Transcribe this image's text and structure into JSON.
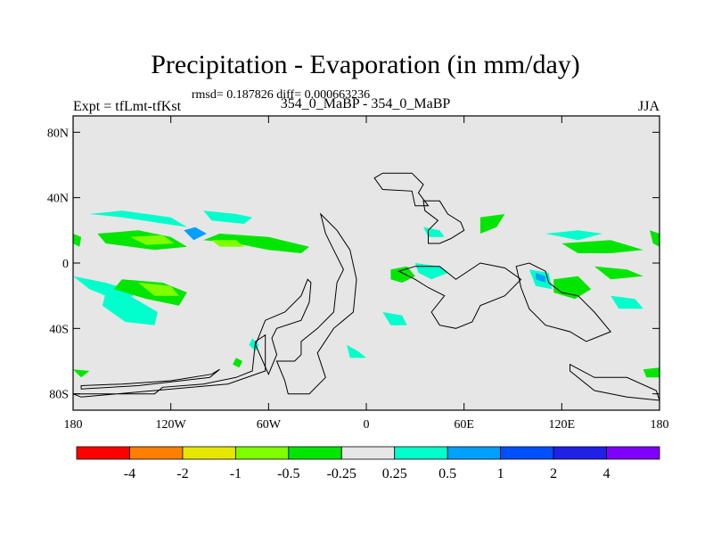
{
  "chart_data": {
    "type": "heatmap",
    "title": "Precipitation - Evaporation (in mm/day)",
    "stats": "rmsd= 0.187826 diff= 0.000663236",
    "left_label": "Expt = tfLmt-tfKst",
    "center_label": "354_0_MaBP - 354_0_MaBP",
    "right_label": "JJA",
    "x_range": [
      -180,
      180
    ],
    "y_range": [
      -90,
      90
    ],
    "x_ticks": [
      {
        "value": -180,
        "label": "180"
      },
      {
        "value": -120,
        "label": "120W"
      },
      {
        "value": -60,
        "label": "60W"
      },
      {
        "value": 0,
        "label": "0"
      },
      {
        "value": 60,
        "label": "60E"
      },
      {
        "value": 120,
        "label": "120E"
      },
      {
        "value": 180,
        "label": "180"
      }
    ],
    "y_ticks": [
      {
        "value": 80,
        "label": "80N"
      },
      {
        "value": 40,
        "label": "40N"
      },
      {
        "value": 0,
        "label": "0"
      },
      {
        "value": -40,
        "label": "40S"
      },
      {
        "value": -80,
        "label": "80S"
      }
    ],
    "background_color": "#e6e6e6",
    "colorbar": {
      "colors": [
        "#ff0000",
        "#ff8000",
        "#e6e600",
        "#80ff00",
        "#00e600",
        "#e6e6e6",
        "#00ffcc",
        "#00a0ff",
        "#0050ff",
        "#2020e6",
        "#8000ff"
      ],
      "labels": [
        "-4",
        "-2",
        "-1",
        "-0.5",
        "-0.25",
        "0.25",
        "0.5",
        "1",
        "2",
        "4"
      ]
    },
    "coastlines": [
      [
        [
          -180,
          -80
        ],
        [
          -130,
          -80
        ],
        [
          -125,
          -76
        ],
        [
          -100,
          -74
        ],
        [
          -80,
          -70
        ],
        [
          -70,
          -66
        ],
        [
          -68,
          -48
        ],
        [
          -62,
          -44
        ],
        [
          -62,
          -66
        ],
        [
          -85,
          -74
        ],
        [
          -130,
          -78
        ],
        [
          -175,
          -82
        ]
      ],
      [
        [
          -175,
          -75
        ],
        [
          -150,
          -74
        ],
        [
          -120,
          -72
        ],
        [
          -95,
          -68
        ],
        [
          -90,
          -65
        ],
        [
          -96,
          -70
        ],
        [
          -140,
          -75
        ],
        [
          -175,
          -77
        ]
      ],
      [
        [
          -48,
          -80
        ],
        [
          -50,
          -72
        ],
        [
          -55,
          -60
        ],
        [
          -44,
          -60
        ],
        [
          -40,
          -56
        ],
        [
          -40,
          -48
        ],
        [
          -30,
          -40
        ],
        [
          -20,
          -30
        ],
        [
          -18,
          -12
        ],
        [
          -14,
          -4
        ],
        [
          -20,
          8
        ],
        [
          -25,
          18
        ],
        [
          -28,
          30
        ],
        [
          -18,
          20
        ],
        [
          -10,
          8
        ],
        [
          -6,
          -10
        ],
        [
          -8,
          -30
        ],
        [
          -20,
          -40
        ],
        [
          -30,
          -55
        ],
        [
          -25,
          -70
        ],
        [
          -35,
          -80
        ],
        [
          -48,
          -80
        ]
      ],
      [
        [
          -60,
          -68
        ],
        [
          -55,
          -56
        ],
        [
          -58,
          -46
        ],
        [
          -55,
          -40
        ],
        [
          -40,
          -35
        ],
        [
          -35,
          -24
        ],
        [
          -34,
          -12
        ],
        [
          -36,
          -10
        ],
        [
          -40,
          -20
        ],
        [
          -50,
          -30
        ],
        [
          -62,
          -35
        ],
        [
          -68,
          -50
        ],
        [
          -60,
          -68
        ]
      ],
      [
        [
          5,
          52
        ],
        [
          10,
          45
        ],
        [
          28,
          44
        ],
        [
          30,
          35
        ],
        [
          38,
          35
        ],
        [
          32,
          43
        ],
        [
          35,
          48
        ],
        [
          28,
          55
        ],
        [
          10,
          55
        ],
        [
          5,
          52
        ]
      ],
      [
        [
          35,
          38
        ],
        [
          45,
          38
        ],
        [
          50,
          30
        ],
        [
          58,
          25
        ],
        [
          60,
          20
        ],
        [
          52,
          15
        ],
        [
          45,
          12
        ],
        [
          38,
          12
        ],
        [
          38,
          20
        ],
        [
          44,
          26
        ],
        [
          36,
          32
        ],
        [
          35,
          38
        ]
      ],
      [
        [
          20,
          -5
        ],
        [
          30,
          -2
        ],
        [
          45,
          -2
        ],
        [
          55,
          -10
        ],
        [
          70,
          0
        ],
        [
          85,
          -3
        ],
        [
          95,
          -10
        ],
        [
          85,
          -20
        ],
        [
          70,
          -26
        ],
        [
          65,
          -36
        ],
        [
          55,
          -40
        ],
        [
          45,
          -38
        ],
        [
          40,
          -30
        ],
        [
          48,
          -20
        ],
        [
          38,
          -15
        ],
        [
          30,
          -10
        ],
        [
          20,
          -5
        ]
      ],
      [
        [
          92,
          -2
        ],
        [
          100,
          0
        ],
        [
          110,
          -5
        ],
        [
          112,
          -12
        ],
        [
          120,
          -18
        ],
        [
          130,
          -20
        ],
        [
          140,
          -30
        ],
        [
          150,
          -42
        ],
        [
          135,
          -48
        ],
        [
          125,
          -42
        ],
        [
          110,
          -38
        ],
        [
          100,
          -28
        ],
        [
          95,
          -15
        ],
        [
          92,
          -2
        ]
      ],
      [
        [
          125,
          -62
        ],
        [
          140,
          -70
        ],
        [
          160,
          -70
        ],
        [
          178,
          -78
        ],
        [
          180,
          -84
        ],
        [
          160,
          -82
        ],
        [
          140,
          -78
        ],
        [
          125,
          -66
        ],
        [
          125,
          -62
        ]
      ]
    ],
    "regions": [
      {
        "bin": "0.25..0.5",
        "points": [
          [
            -170,
            30
          ],
          [
            -150,
            28
          ],
          [
            -130,
            25
          ],
          [
            -110,
            22
          ],
          [
            -120,
            28
          ],
          [
            -150,
            32
          ]
        ]
      },
      {
        "bin": "-0.5..-0.25",
        "points": [
          [
            -165,
            18
          ],
          [
            -140,
            20
          ],
          [
            -120,
            16
          ],
          [
            -110,
            10
          ],
          [
            -130,
            8
          ],
          [
            -160,
            12
          ]
        ]
      },
      {
        "bin": "-1..-0.5",
        "points": [
          [
            -145,
            16
          ],
          [
            -125,
            17
          ],
          [
            -118,
            12
          ],
          [
            -135,
            11
          ]
        ]
      },
      {
        "bin": "0.5..1",
        "points": [
          [
            -112,
            20
          ],
          [
            -105,
            22
          ],
          [
            -98,
            18
          ],
          [
            -106,
            14
          ]
        ]
      },
      {
        "bin": "0.25..0.5",
        "points": [
          [
            -100,
            32
          ],
          [
            -80,
            30
          ],
          [
            -70,
            28
          ],
          [
            -75,
            24
          ],
          [
            -95,
            26
          ]
        ]
      },
      {
        "bin": "-0.5..-0.25",
        "points": [
          [
            -100,
            14
          ],
          [
            -80,
            12
          ],
          [
            -60,
            8
          ],
          [
            -40,
            6
          ],
          [
            -35,
            10
          ],
          [
            -60,
            16
          ],
          [
            -90,
            18
          ]
        ]
      },
      {
        "bin": "-1..-0.5",
        "points": [
          [
            -95,
            14
          ],
          [
            -80,
            14
          ],
          [
            -75,
            10
          ],
          [
            -90,
            10
          ]
        ]
      },
      {
        "bin": "0.25..0.5",
        "points": [
          [
            -180,
            -8
          ],
          [
            -160,
            -12
          ],
          [
            -140,
            -18
          ],
          [
            -150,
            -24
          ],
          [
            -170,
            -16
          ]
        ]
      },
      {
        "bin": "-0.5..-0.25",
        "points": [
          [
            -150,
            -10
          ],
          [
            -125,
            -12
          ],
          [
            -110,
            -18
          ],
          [
            -115,
            -26
          ],
          [
            -135,
            -22
          ],
          [
            -155,
            -16
          ]
        ]
      },
      {
        "bin": "-1..-0.5",
        "points": [
          [
            -140,
            -12
          ],
          [
            -120,
            -14
          ],
          [
            -115,
            -20
          ],
          [
            -130,
            -20
          ]
        ]
      },
      {
        "bin": "0.5..1",
        "points": [
          [
            -150,
            -22
          ],
          [
            -140,
            -30
          ],
          [
            -135,
            -36
          ],
          [
            -143,
            -34
          ],
          [
            -152,
            -26
          ]
        ]
      },
      {
        "bin": "0.25..0.5",
        "points": [
          [
            -160,
            -18
          ],
          [
            -145,
            -20
          ],
          [
            -128,
            -30
          ],
          [
            -130,
            -38
          ],
          [
            -148,
            -36
          ],
          [
            -162,
            -26
          ]
        ]
      },
      {
        "bin": "0.25..0.5",
        "points": [
          [
            -12,
            -50
          ],
          [
            -5,
            -54
          ],
          [
            0,
            -58
          ],
          [
            -10,
            -58
          ]
        ]
      },
      {
        "bin": "-0.5..-0.25",
        "points": [
          [
            -80,
            -58
          ],
          [
            -76,
            -60
          ],
          [
            -78,
            -64
          ],
          [
            -82,
            -62
          ]
        ]
      },
      {
        "bin": "0.25..0.5",
        "points": [
          [
            -70,
            -46
          ],
          [
            -66,
            -50
          ],
          [
            -68,
            -54
          ],
          [
            -72,
            -50
          ]
        ]
      },
      {
        "bin": "-0.5..-0.25",
        "points": [
          [
            15,
            -4
          ],
          [
            25,
            -2
          ],
          [
            30,
            -8
          ],
          [
            22,
            -12
          ],
          [
            15,
            -10
          ]
        ]
      },
      {
        "bin": "0.25..0.5",
        "points": [
          [
            30,
            0
          ],
          [
            45,
            -2
          ],
          [
            50,
            -6
          ],
          [
            40,
            -10
          ],
          [
            32,
            -6
          ]
        ]
      },
      {
        "bin": "0.25..0.5",
        "points": [
          [
            10,
            -30
          ],
          [
            22,
            -32
          ],
          [
            25,
            -38
          ],
          [
            15,
            -38
          ]
        ]
      },
      {
        "bin": "0.25..0.5",
        "points": [
          [
            35,
            22
          ],
          [
            45,
            20
          ],
          [
            48,
            16
          ],
          [
            38,
            16
          ]
        ]
      },
      {
        "bin": "-0.5..-0.25",
        "points": [
          [
            70,
            28
          ],
          [
            85,
            30
          ],
          [
            80,
            22
          ],
          [
            70,
            18
          ]
        ]
      },
      {
        "bin": "0.25..0.5",
        "points": [
          [
            100,
            -4
          ],
          [
            112,
            -6
          ],
          [
            114,
            -16
          ],
          [
            104,
            -14
          ]
        ]
      },
      {
        "bin": "0.5..1",
        "points": [
          [
            104,
            -6
          ],
          [
            110,
            -8
          ],
          [
            110,
            -12
          ],
          [
            104,
            -10
          ]
        ]
      },
      {
        "bin": "-0.5..-0.25",
        "points": [
          [
            115,
            -10
          ],
          [
            130,
            -8
          ],
          [
            138,
            -16
          ],
          [
            128,
            -22
          ],
          [
            115,
            -18
          ]
        ]
      },
      {
        "bin": "-0.5..-0.25",
        "points": [
          [
            120,
            12
          ],
          [
            150,
            14
          ],
          [
            170,
            8
          ],
          [
            150,
            6
          ],
          [
            130,
            6
          ]
        ]
      },
      {
        "bin": "0.25..0.5",
        "points": [
          [
            110,
            18
          ],
          [
            130,
            20
          ],
          [
            145,
            18
          ],
          [
            130,
            14
          ]
        ]
      },
      {
        "bin": "-0.5..-0.25",
        "points": [
          [
            140,
            -2
          ],
          [
            160,
            -4
          ],
          [
            170,
            -8
          ],
          [
            150,
            -10
          ]
        ]
      },
      {
        "bin": "0.25..0.5",
        "points": [
          [
            150,
            -20
          ],
          [
            165,
            -22
          ],
          [
            170,
            -28
          ],
          [
            155,
            -28
          ]
        ]
      },
      {
        "bin": "-0.5..-0.25",
        "points": [
          [
            -180,
            -65
          ],
          [
            -170,
            -66
          ],
          [
            -175,
            -70
          ]
        ]
      },
      {
        "bin": "-0.5..-0.25",
        "points": [
          [
            170,
            -65
          ],
          [
            180,
            -64
          ],
          [
            180,
            -70
          ],
          [
            172,
            -70
          ]
        ]
      },
      {
        "bin": "-0.5..-0.25",
        "points": [
          [
            -180,
            18
          ],
          [
            -175,
            16
          ],
          [
            -176,
            10
          ],
          [
            -180,
            12
          ]
        ]
      },
      {
        "bin": "-0.5..-0.25",
        "points": [
          [
            174,
            20
          ],
          [
            180,
            18
          ],
          [
            180,
            10
          ],
          [
            176,
            12
          ]
        ]
      }
    ]
  }
}
